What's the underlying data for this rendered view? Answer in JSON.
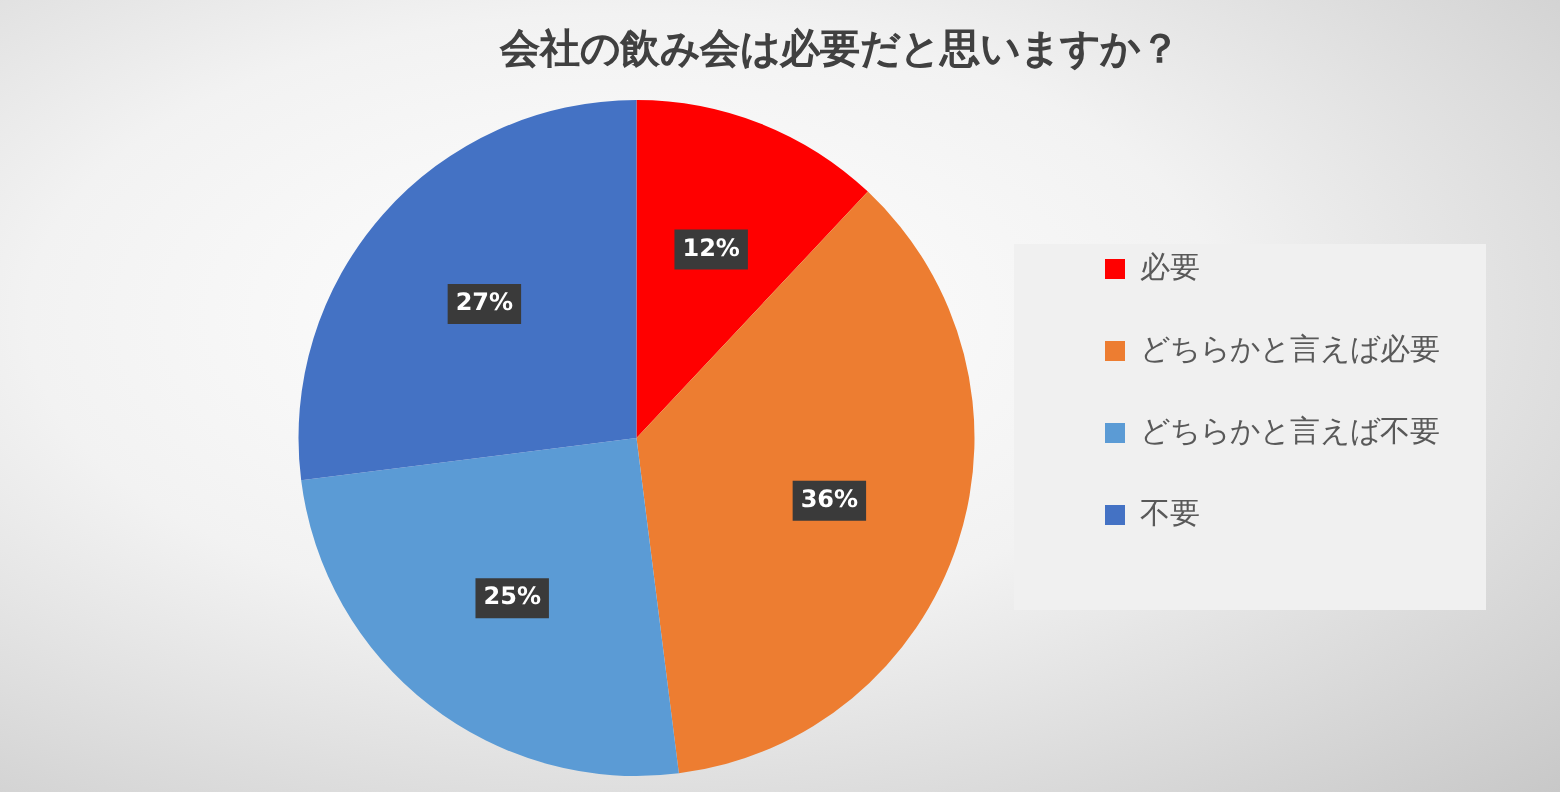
{
  "chart_data": {
    "type": "pie",
    "title": "会社の飲み会は必要だと思いますか？",
    "categories": [
      "必要",
      "どちらかと言えば必要",
      "どちらかと言えば不要",
      "不要"
    ],
    "values": [
      12,
      36,
      25,
      27
    ],
    "colors": [
      "#ff0000",
      "#ed7d31",
      "#5b9bd5",
      "#4472c4"
    ],
    "value_labels": [
      "12%",
      "36%",
      "25%",
      "27%"
    ],
    "legend": "right"
  }
}
